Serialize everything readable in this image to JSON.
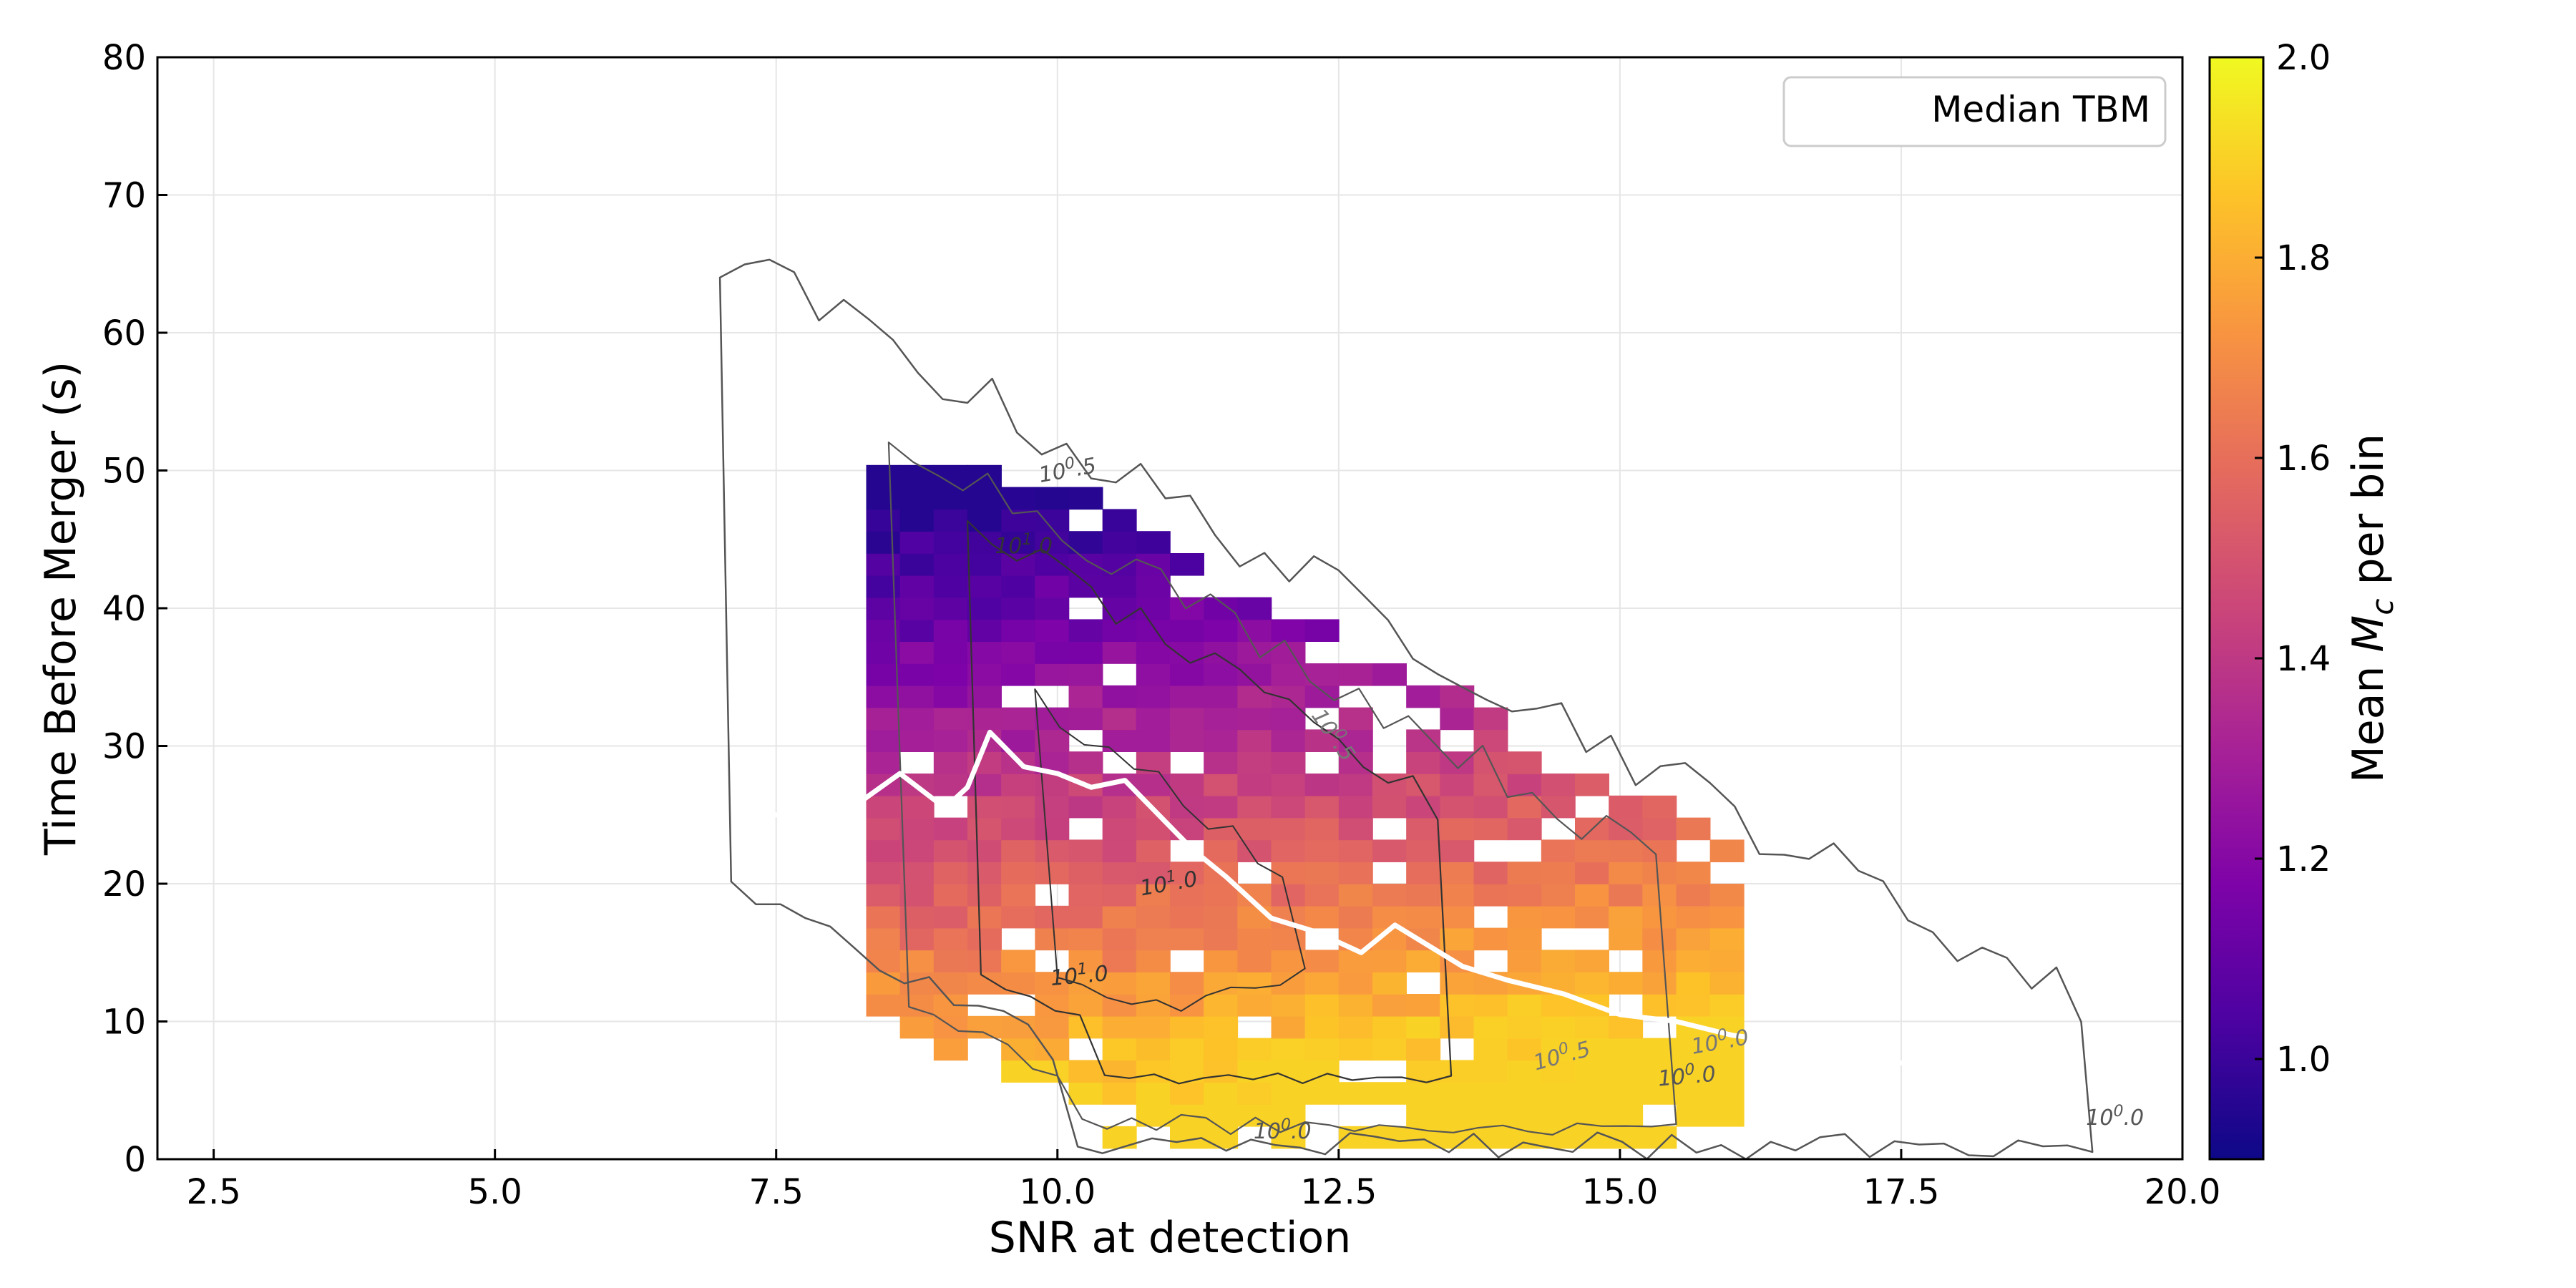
{
  "chart_data": {
    "type": "heatmap",
    "title": "",
    "xlabel": "SNR at detection",
    "ylabel": "Time Before Merger (s)",
    "xlim": [
      2.0,
      20.0
    ],
    "ylim": [
      0,
      80
    ],
    "xticks": [
      2.5,
      5.0,
      7.5,
      10.0,
      12.5,
      15.0,
      17.5,
      20.0
    ],
    "xtick_labels": [
      "2.5",
      "5.0",
      "7.5",
      "10.0",
      "12.5",
      "15.0",
      "17.5",
      "20.0"
    ],
    "yticks": [
      0,
      10,
      20,
      30,
      40,
      50,
      60,
      70,
      80
    ],
    "ytick_labels": [
      "0",
      "10",
      "20",
      "30",
      "40",
      "50",
      "60",
      "70",
      "80"
    ],
    "grid": true,
    "colorbar": {
      "label_prefix": "Mean ",
      "label_symbol": "M",
      "label_subscript": "c",
      "label_suffix": " per bin",
      "range": [
        0.9,
        2.0
      ],
      "ticks": [
        1.0,
        1.2,
        1.4,
        1.6,
        1.8,
        2.0
      ],
      "tick_labels": [
        "1.0",
        "1.2",
        "1.4",
        "1.6",
        "1.8",
        "2.0"
      ],
      "colormap": "plasma"
    },
    "heatmap": {
      "bin_width_snr": 0.3,
      "bin_height_s": 1.6,
      "note": "2D histogram of mean chirp mass per (SNR, time-before-merger) bin"
    },
    "median_line": {
      "name": "Median TBM",
      "color": "#ffffff",
      "x": [
        7.5,
        8.0,
        8.6,
        9.0,
        9.2,
        9.4,
        9.7,
        10.0,
        10.3,
        10.6,
        10.9,
        11.2,
        11.5,
        11.9,
        12.3,
        12.7,
        13.0,
        13.3,
        13.6,
        14.0,
        14.5,
        15.0,
        15.5,
        16.0,
        16.5,
        17.0,
        17.5,
        18.0,
        18.5,
        19.0
      ],
      "y": [
        25.0,
        24.5,
        28.0,
        25.5,
        27.0,
        31.0,
        28.5,
        28.0,
        27.0,
        27.5,
        25.0,
        22.5,
        20.5,
        17.5,
        16.5,
        15.0,
        17.0,
        15.5,
        14.0,
        13.0,
        12.0,
        10.5,
        10.0,
        9.0,
        8.5,
        7.5,
        7.0,
        6.5,
        5.5,
        5.0
      ]
    },
    "contours": {
      "levels": [
        "10^0.0",
        "10^0.5",
        "10^1.0"
      ],
      "labels": [
        {
          "base": "10",
          "exp": "0",
          "tail": ".5",
          "x": 10.1,
          "y": 49.5,
          "angle": -10,
          "color": "#555555"
        },
        {
          "base": "10",
          "exp": "1",
          "tail": ".0",
          "x": 9.7,
          "y": 44.0,
          "angle": 0,
          "color": "#333333"
        },
        {
          "base": "10",
          "exp": "0",
          "tail": ".5",
          "x": 12.4,
          "y": 30.5,
          "angle": 55,
          "color": "#777777"
        },
        {
          "base": "10",
          "exp": "1",
          "tail": ".0",
          "x": 11.0,
          "y": 19.5,
          "angle": -10,
          "color": "#333333"
        },
        {
          "base": "10",
          "exp": "1",
          "tail": ".0",
          "x": 10.2,
          "y": 12.8,
          "angle": -5,
          "color": "#333333"
        },
        {
          "base": "10",
          "exp": "0",
          "tail": ".5",
          "x": 14.5,
          "y": 7.0,
          "angle": -15,
          "color": "#777777"
        },
        {
          "base": "10",
          "exp": "0",
          "tail": ".0",
          "x": 15.9,
          "y": 8.0,
          "angle": -10,
          "color": "#777777"
        },
        {
          "base": "10",
          "exp": "0",
          "tail": ".0",
          "x": 15.6,
          "y": 5.5,
          "angle": -5,
          "color": "#555555"
        },
        {
          "base": "10",
          "exp": "0",
          "tail": ".0",
          "x": 12.0,
          "y": 1.5,
          "angle": 0,
          "color": "#555555"
        },
        {
          "base": "10",
          "exp": "0",
          "tail": ".0",
          "x": 19.4,
          "y": 2.5,
          "angle": 0,
          "color": "#555555"
        }
      ]
    },
    "legend": {
      "entries": [
        "Median TBM"
      ],
      "position": "top-right"
    }
  }
}
